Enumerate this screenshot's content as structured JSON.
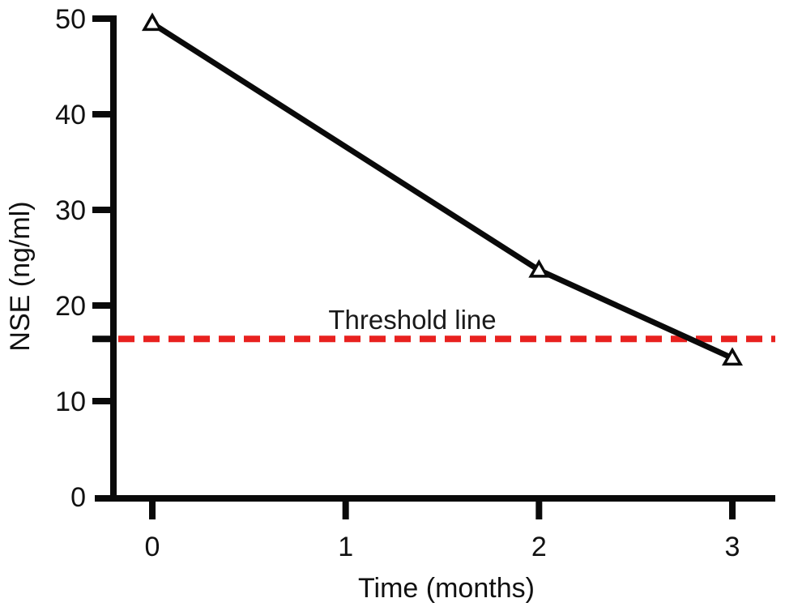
{
  "figure": {
    "background": "#ffffff",
    "axis_color": "#0a0a0a"
  },
  "chart_data": {
    "type": "line",
    "title": "",
    "xlabel": "Time (months)",
    "ylabel": "NSE (ng/ml)",
    "x": [
      0,
      2,
      3
    ],
    "series": [
      {
        "name": "NSE",
        "values": [
          49.5,
          23.7,
          14.5
        ],
        "color": "#0a0a0a",
        "marker": "open-triangle",
        "marker_fill": "#ffffff"
      }
    ],
    "xticks": [
      0,
      1,
      2,
      3
    ],
    "yticks": [
      0,
      10,
      20,
      30,
      40,
      50
    ],
    "xlim": [
      0,
      3
    ],
    "ylim": [
      0,
      50
    ],
    "grid": false,
    "legend": "none",
    "threshold": {
      "value": 16.5,
      "label": "Threshold line",
      "color": "#e8211f",
      "style": "dashed",
      "has_axis_tick": true
    }
  }
}
